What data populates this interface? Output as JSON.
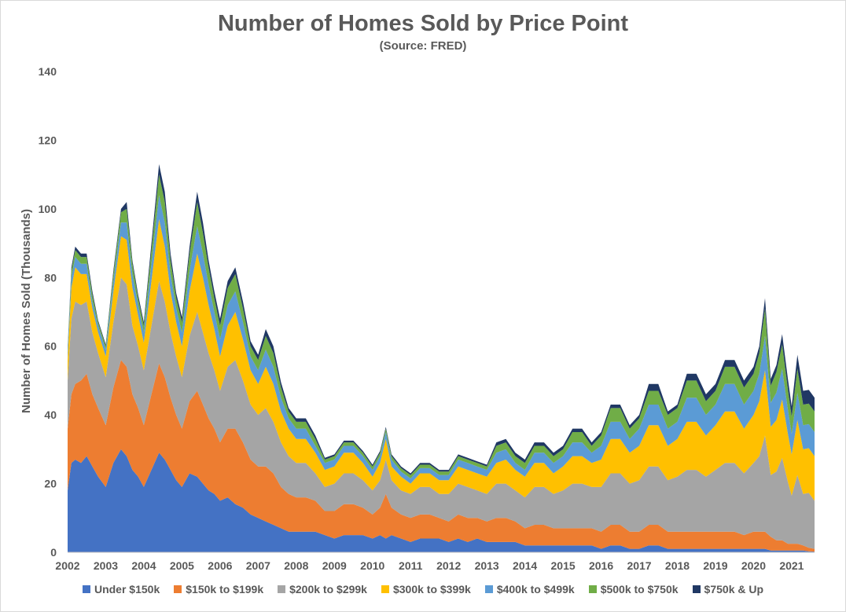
{
  "chart_data": {
    "type": "area",
    "stacked": true,
    "title": "Number of Homes Sold by Price Point",
    "subtitle": "(Source: FRED)",
    "xlabel": "",
    "ylabel": "Number of Homes Sold (Thousands)",
    "ylim": [
      0,
      140
    ],
    "yticks": [
      0,
      20,
      40,
      60,
      80,
      100,
      120,
      140
    ],
    "xticks": [
      "2002",
      "2003",
      "2004",
      "2005",
      "2006",
      "2007",
      "2008",
      "2009",
      "2010",
      "2011",
      "2012",
      "2013",
      "2014",
      "2015",
      "2016",
      "2017",
      "2018",
      "2019",
      "2020",
      "2021"
    ],
    "xlim": [
      2002.0,
      2021.6
    ],
    "grid": false,
    "legend_position": "bottom",
    "x": [
      2002.0,
      2002.1,
      2002.2,
      2002.35,
      2002.5,
      2002.65,
      2002.8,
      2003.0,
      2003.2,
      2003.4,
      2003.55,
      2003.7,
      2003.85,
      2004.0,
      2004.2,
      2004.4,
      2004.55,
      2004.7,
      2004.85,
      2005.0,
      2005.2,
      2005.4,
      2005.55,
      2005.7,
      2005.85,
      2006.0,
      2006.2,
      2006.4,
      2006.6,
      2006.8,
      2007.0,
      2007.2,
      2007.4,
      2007.6,
      2007.8,
      2008.0,
      2008.25,
      2008.5,
      2008.75,
      2009.0,
      2009.25,
      2009.5,
      2009.75,
      2010.0,
      2010.2,
      2010.35,
      2010.5,
      2010.75,
      2011.0,
      2011.25,
      2011.5,
      2011.75,
      2012.0,
      2012.25,
      2012.5,
      2012.75,
      2013.0,
      2013.25,
      2013.5,
      2013.75,
      2014.0,
      2014.25,
      2014.5,
      2014.75,
      2015.0,
      2015.25,
      2015.5,
      2015.75,
      2016.0,
      2016.25,
      2016.5,
      2016.75,
      2017.0,
      2017.25,
      2017.5,
      2017.75,
      2018.0,
      2018.25,
      2018.5,
      2018.75,
      2019.0,
      2019.25,
      2019.5,
      2019.75,
      2020.0,
      2020.15,
      2020.3,
      2020.45,
      2020.6,
      2020.75,
      2020.9,
      2021.0,
      2021.15,
      2021.3,
      2021.45,
      2021.6
    ],
    "series": [
      {
        "name": "Under $150k",
        "color": "#4472c4",
        "values": [
          18,
          26,
          27,
          26,
          28,
          25,
          22,
          19,
          26,
          30,
          28,
          24,
          22,
          19,
          24,
          29,
          27,
          24,
          21,
          19,
          23,
          22,
          20,
          18,
          17,
          15,
          16,
          14,
          13,
          11,
          10,
          9,
          8,
          7,
          6,
          6,
          6,
          6,
          5,
          4,
          5,
          5,
          5,
          4,
          5,
          4,
          5,
          4,
          3,
          4,
          4,
          4,
          3,
          4,
          3,
          4,
          3,
          3,
          3,
          3,
          2,
          2,
          2,
          2,
          2,
          2,
          2,
          2,
          1,
          2,
          2,
          1,
          1,
          2,
          2,
          1,
          1,
          1,
          1,
          1,
          1,
          1,
          1,
          1,
          1,
          1,
          1,
          0.5,
          0.5,
          0.5,
          0.5,
          0.5,
          0.5,
          0.5,
          0.3,
          0.2
        ]
      },
      {
        "name": "$150k to $199k",
        "color": "#ed7d31",
        "values": [
          18,
          20,
          22,
          24,
          24,
          21,
          20,
          18,
          22,
          26,
          26,
          22,
          20,
          18,
          22,
          26,
          24,
          21,
          19,
          17,
          21,
          25,
          23,
          21,
          19,
          17,
          20,
          22,
          19,
          16,
          15,
          16,
          15,
          12,
          11,
          10,
          10,
          9,
          7,
          8,
          9,
          9,
          8,
          7,
          8,
          13,
          8,
          7,
          7,
          7,
          7,
          6,
          6,
          7,
          7,
          6,
          6,
          7,
          7,
          6,
          5,
          6,
          6,
          5,
          5,
          5,
          5,
          5,
          5,
          6,
          6,
          5,
          5,
          6,
          6,
          5,
          5,
          5,
          5,
          5,
          5,
          5,
          5,
          4,
          5,
          5,
          5,
          4,
          3,
          3,
          2,
          2,
          2,
          1.5,
          1,
          0.8
        ]
      },
      {
        "name": "$200k to $299k",
        "color": "#a5a5a5",
        "values": [
          14,
          22,
          24,
          22,
          21,
          18,
          16,
          14,
          19,
          24,
          24,
          20,
          18,
          16,
          20,
          24,
          22,
          19,
          17,
          15,
          19,
          23,
          21,
          19,
          17,
          15,
          18,
          20,
          18,
          16,
          15,
          17,
          15,
          13,
          11,
          10,
          10,
          8,
          7,
          8,
          9,
          9,
          8,
          7,
          8,
          10,
          8,
          7,
          7,
          8,
          8,
          7,
          8,
          9,
          9,
          8,
          8,
          10,
          10,
          9,
          9,
          11,
          11,
          10,
          11,
          13,
          13,
          12,
          13,
          15,
          15,
          14,
          15,
          17,
          17,
          15,
          16,
          18,
          18,
          16,
          18,
          20,
          20,
          18,
          20,
          22,
          28,
          18,
          20,
          24,
          18,
          14,
          20,
          15,
          16,
          14
        ]
      },
      {
        "name": "$300k to $399k",
        "color": "#ffc000",
        "values": [
          6,
          9,
          10,
          9,
          8,
          7,
          6,
          6,
          9,
          12,
          13,
          11,
          9,
          8,
          13,
          18,
          16,
          12,
          10,
          9,
          13,
          17,
          16,
          14,
          12,
          10,
          12,
          14,
          12,
          10,
          9,
          12,
          11,
          9,
          8,
          7,
          7,
          6,
          5,
          5,
          6,
          6,
          5,
          4,
          5,
          6,
          4,
          4,
          3,
          4,
          4,
          4,
          4,
          5,
          5,
          5,
          5,
          6,
          7,
          6,
          6,
          7,
          7,
          6,
          7,
          8,
          8,
          7,
          8,
          10,
          10,
          9,
          10,
          12,
          12,
          10,
          11,
          14,
          14,
          12,
          13,
          15,
          15,
          13,
          14,
          16,
          19,
          14,
          15,
          17,
          14,
          12,
          16,
          13,
          13,
          13
        ]
      },
      {
        "name": "$400k to $499k",
        "color": "#5b9bd5",
        "values": [
          2,
          3,
          3,
          3,
          3,
          2,
          2,
          2,
          3,
          4,
          5,
          4,
          3,
          3,
          5,
          7,
          7,
          5,
          4,
          4,
          6,
          8,
          7,
          6,
          5,
          5,
          6,
          6,
          5,
          4,
          4,
          5,
          5,
          4,
          3,
          3,
          3,
          2,
          2,
          2,
          2,
          2,
          2,
          2,
          2,
          2,
          2,
          1.5,
          1.5,
          1.5,
          1.5,
          1.5,
          1.5,
          2,
          2,
          2,
          2,
          3,
          3,
          2,
          2,
          3,
          3,
          3,
          3,
          4,
          4,
          3,
          4,
          5,
          5,
          4,
          5,
          6,
          6,
          5,
          5,
          7,
          7,
          6,
          6,
          8,
          8,
          7,
          7,
          8,
          10,
          7,
          8,
          9,
          7,
          6,
          8,
          7,
          7,
          7
        ]
      },
      {
        "name": "$500k to $750k",
        "color": "#70ad47",
        "values": [
          1,
          2,
          2,
          2,
          2,
          2,
          1,
          1,
          2,
          3,
          4,
          3,
          2,
          2,
          4,
          6,
          6,
          4,
          3,
          3,
          5,
          7,
          6,
          5,
          4,
          4,
          5,
          5,
          4,
          3,
          3,
          4,
          4,
          3,
          2,
          2,
          2,
          2,
          1,
          1,
          1,
          1,
          1,
          1,
          1,
          1,
          1,
          1,
          1,
          1,
          1,
          1,
          1,
          1,
          1,
          1,
          1,
          2,
          2,
          2,
          2,
          2,
          2,
          2,
          2,
          3,
          3,
          2,
          3,
          4,
          4,
          3,
          3,
          4,
          4,
          4,
          4,
          5,
          5,
          4,
          4,
          5,
          5,
          5,
          5,
          6,
          8,
          5,
          6,
          7,
          6,
          5,
          7,
          6,
          6,
          6
        ]
      },
      {
        "name": "$750k & Up",
        "color": "#203864",
        "values": [
          0.5,
          1,
          1,
          1,
          1,
          1,
          0.5,
          0.5,
          1,
          1,
          2,
          1,
          1,
          1,
          2,
          3,
          3,
          2,
          1.5,
          1.5,
          2,
          3,
          3,
          2,
          2,
          2,
          2,
          2,
          2,
          1.5,
          1.5,
          2,
          2,
          1.5,
          1,
          1,
          1,
          1,
          0.5,
          0.5,
          0.5,
          0.5,
          0.5,
          0.5,
          0.5,
          0.5,
          0.5,
          0.5,
          0.5,
          0.5,
          0.5,
          0.5,
          0.5,
          0.5,
          0.5,
          0.5,
          0.5,
          1,
          1,
          1,
          1,
          1,
          1,
          1,
          1,
          1,
          1,
          1,
          1,
          1,
          1,
          1,
          1,
          2,
          2,
          1,
          1,
          2,
          2,
          2,
          2,
          2,
          2,
          2,
          2,
          2,
          3,
          2,
          2,
          3,
          3,
          3,
          4,
          4,
          4,
          4
        ]
      }
    ]
  }
}
